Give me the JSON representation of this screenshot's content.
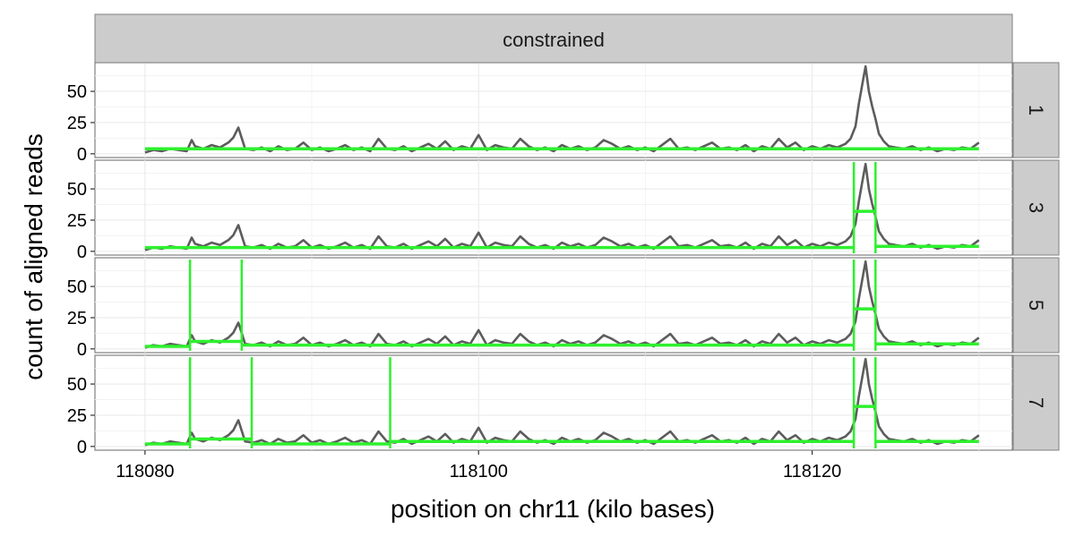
{
  "chart_data": {
    "type": "line",
    "facet_title": "constrained",
    "xlabel": "position on chr11 (kilo bases)",
    "ylabel": "count of aligned reads",
    "xlim": [
      118077,
      118132
    ],
    "ylim": [
      -3,
      73
    ],
    "x_ticks": [
      118080,
      118100,
      118120
    ],
    "x_tick_labels": [
      "118080",
      "118100",
      "118120"
    ],
    "y_ticks": [
      0,
      25,
      50
    ],
    "y_tick_labels": [
      "0",
      "25",
      "50"
    ],
    "grid": true,
    "colors": {
      "coverage": "#5c5c5c",
      "segments": "#2ef02e",
      "strip_fill": "#cccccc",
      "grid": "#ebebeb",
      "border": "#808080"
    },
    "panels": [
      {
        "label": "1",
        "changepoints": [],
        "segments": [
          {
            "x_start": 118080,
            "x_end": 118130,
            "mean": 4
          }
        ]
      },
      {
        "label": "3",
        "changepoints": [
          118122.5,
          118123.8
        ],
        "segments": [
          {
            "x_start": 118080,
            "x_end": 118122.5,
            "mean": 3
          },
          {
            "x_start": 118122.5,
            "x_end": 118123.8,
            "mean": 32
          },
          {
            "x_start": 118123.8,
            "x_end": 118130,
            "mean": 4
          }
        ]
      },
      {
        "label": "5",
        "changepoints": [
          118082.7,
          118085.8,
          118122.5,
          118123.8
        ],
        "segments": [
          {
            "x_start": 118080,
            "x_end": 118082.7,
            "mean": 2
          },
          {
            "x_start": 118082.7,
            "x_end": 118085.8,
            "mean": 6
          },
          {
            "x_start": 118085.8,
            "x_end": 118122.5,
            "mean": 3
          },
          {
            "x_start": 118122.5,
            "x_end": 118123.8,
            "mean": 32
          },
          {
            "x_start": 118123.8,
            "x_end": 118130,
            "mean": 4
          }
        ]
      },
      {
        "label": "7",
        "changepoints": [
          118082.7,
          118086.4,
          118094.7,
          118122.5,
          118123.8
        ],
        "segments": [
          {
            "x_start": 118080,
            "x_end": 118082.7,
            "mean": 2
          },
          {
            "x_start": 118082.7,
            "x_end": 118086.4,
            "mean": 6
          },
          {
            "x_start": 118086.4,
            "x_end": 118094.7,
            "mean": 2
          },
          {
            "x_start": 118094.7,
            "x_end": 118122.5,
            "mean": 4
          },
          {
            "x_start": 118122.5,
            "x_end": 118123.8,
            "mean": 32
          },
          {
            "x_start": 118123.8,
            "x_end": 118130,
            "mean": 4
          }
        ]
      }
    ],
    "coverage": {
      "name": "count of aligned reads",
      "x": [
        118080,
        118080.5,
        118081,
        118081.5,
        118082,
        118082.5,
        118082.8,
        118083,
        118083.5,
        118084,
        118084.5,
        118085,
        118085.3,
        118085.6,
        118086,
        118086.5,
        118087,
        118087.5,
        118088,
        118088.5,
        118089,
        118089.5,
        118090,
        118090.5,
        118091,
        118091.5,
        118092,
        118092.5,
        118093,
        118093.5,
        118094,
        118094.5,
        118095,
        118095.5,
        118096,
        118096.5,
        118097,
        118097.5,
        118098,
        118098.5,
        118099,
        118099.5,
        118100,
        118100.5,
        118101,
        118101.5,
        118102,
        118102.5,
        118103,
        118103.5,
        118104,
        118104.5,
        118105,
        118105.5,
        118106,
        118106.5,
        118107,
        118107.5,
        118108,
        118108.5,
        118109,
        118109.5,
        118110,
        118110.5,
        118111,
        118111.5,
        118112,
        118112.5,
        118113,
        118113.5,
        118114,
        118114.5,
        118115,
        118115.5,
        118116,
        118116.5,
        118117,
        118117.5,
        118118,
        118118.5,
        118119,
        118119.5,
        118120,
        118120.5,
        118121,
        118121.5,
        118122,
        118122.3,
        118122.6,
        118122.8,
        118123,
        118123.2,
        118123.4,
        118123.6,
        118123.8,
        118124,
        118124.3,
        118124.6,
        118125,
        118125.5,
        118126,
        118126.5,
        118127,
        118127.5,
        118128,
        118128.5,
        118129,
        118129.5,
        118130
      ],
      "y": [
        1,
        3,
        2,
        4,
        3,
        2,
        11,
        6,
        4,
        7,
        5,
        9,
        13,
        21,
        4,
        3,
        5,
        2,
        6,
        3,
        4,
        9,
        3,
        5,
        2,
        4,
        7,
        3,
        5,
        2,
        12,
        4,
        3,
        6,
        2,
        5,
        8,
        4,
        10,
        3,
        6,
        4,
        15,
        3,
        7,
        5,
        4,
        12,
        6,
        3,
        5,
        2,
        7,
        4,
        6,
        3,
        5,
        11,
        8,
        4,
        6,
        3,
        5,
        2,
        7,
        12,
        4,
        5,
        3,
        6,
        9,
        4,
        5,
        3,
        7,
        2,
        6,
        4,
        12,
        5,
        9,
        3,
        6,
        4,
        7,
        5,
        8,
        12,
        22,
        40,
        55,
        70,
        50,
        38,
        28,
        16,
        10,
        6,
        5,
        4,
        6,
        3,
        5,
        2,
        4,
        3,
        5,
        4,
        9
      ]
    }
  }
}
